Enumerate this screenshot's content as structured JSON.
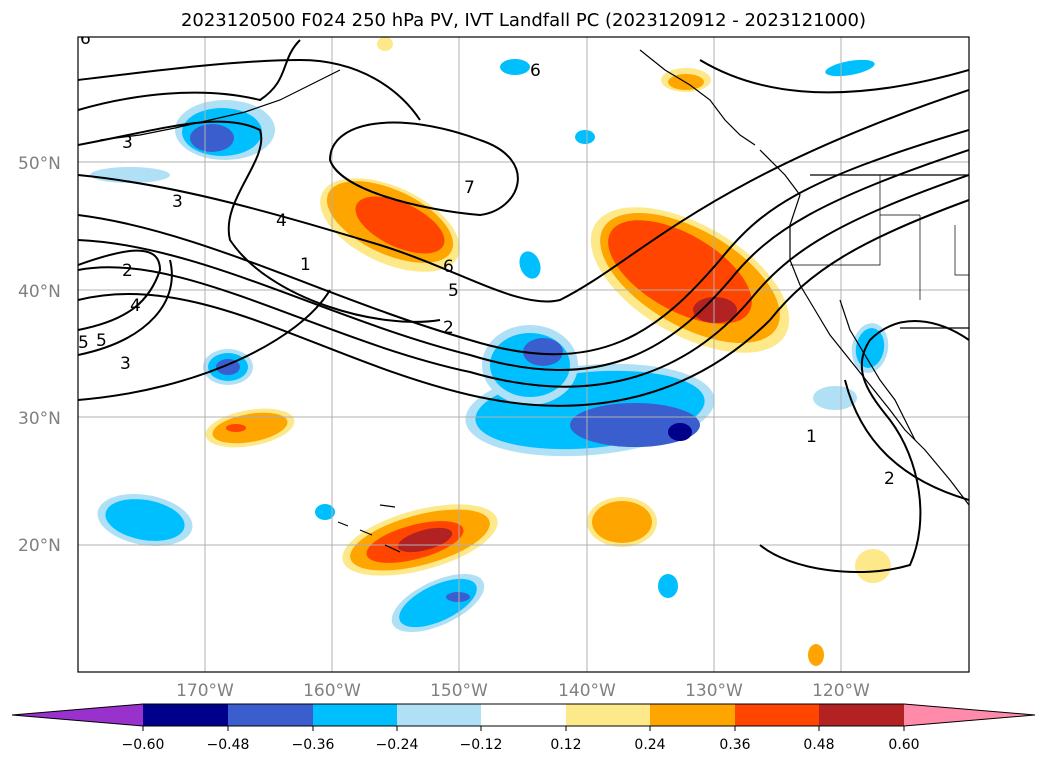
{
  "title": "2023120500 F024 250 hPa PV, IVT Landfall PC (2023120912 - 2023121000)",
  "chart_data": {
    "type": "heatmap",
    "title": "2023120500 F024 250 hPa PV, IVT Landfall PC (2023120912 - 2023121000)",
    "projection": "map (North Pacific)",
    "lon_ticks": [
      "170°W",
      "160°W",
      "150°W",
      "140°W",
      "130°W",
      "120°W"
    ],
    "lat_ticks": [
      "50°N",
      "40°N",
      "30°N",
      "20°N"
    ],
    "grid": true,
    "colorbar": {
      "orientation": "horizontal",
      "extend": "both",
      "levels": [
        -0.6,
        -0.48,
        -0.36,
        -0.24,
        -0.12,
        0.12,
        0.24,
        0.36,
        0.48,
        0.6
      ],
      "tick_labels": [
        "−0.60",
        "−0.48",
        "−0.36",
        "−0.24",
        "−0.12",
        "0.12",
        "0.24",
        "0.36",
        "0.48",
        "0.60"
      ],
      "colors": [
        "#9932cc",
        "#00008b",
        "#3a5ecd",
        "#00bfff",
        "#b0e0f6",
        "#ffffff",
        "#fde98a",
        "#ffa500",
        "#ff4500",
        "#b22222",
        "#ff8aaa"
      ]
    },
    "pv_contour_labels": [
      "6",
      "3",
      "3",
      "7",
      "4",
      "1",
      "2",
      "6",
      "5",
      "2",
      "4",
      "5",
      "3",
      "5",
      "6",
      "1",
      "2"
    ]
  },
  "colors": {
    "ocean": "#ffffff",
    "grid": "#b0b0b0",
    "contour": "#000000"
  }
}
